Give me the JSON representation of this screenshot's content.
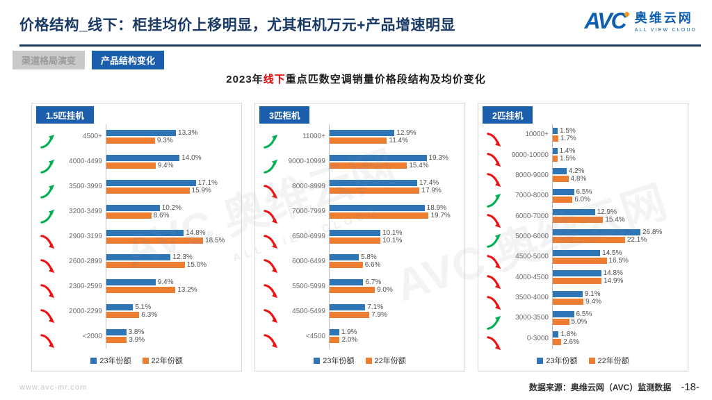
{
  "header": {
    "title": "价格结构_线下：柜挂均价上移明显，尤其柜机万元+产品增速明显",
    "logo": {
      "short": "AVC",
      "cn": "奥维云网",
      "en": "ALL VIEW CLOUD"
    }
  },
  "tabs": [
    {
      "label": "渠道格局演变",
      "active": false
    },
    {
      "label": "产品结构变化",
      "active": true
    }
  ],
  "chart_title": {
    "prefix": "2023年",
    "highlight": "线下",
    "suffix": "重点匹数空调销量价格段结构及均价变化"
  },
  "legend": [
    "23年份额",
    "22年份额"
  ],
  "colors": {
    "blue": "#2E75B6",
    "orange": "#ED7D31",
    "green": "#00B050",
    "red": "#EE1111",
    "panel_header": "#1B5EAC"
  },
  "watermarks": [
    {
      "text": "AVC 奥维云网"
    },
    {
      "text": "AVC 奥维云网"
    },
    {
      "text": "ALL VIEW CLOUD"
    }
  ],
  "footer": {
    "left": "www.avc-mr.com",
    "source": "数据来源：奥维云网（AVC）监测数据",
    "page": "-18-"
  },
  "chart_data": [
    {
      "type": "bar",
      "orientation": "horizontal",
      "title": "1.5匹挂机",
      "series_names": [
        "23年份额",
        "22年份额"
      ],
      "xlim": [
        0,
        25
      ],
      "legend_position": "bottom",
      "rows": [
        {
          "category": "4500+",
          "y23": 13.3,
          "y22": 9.3,
          "trend": "up"
        },
        {
          "category": "4000-4499",
          "y23": 14.0,
          "y22": 9.4,
          "trend": "up"
        },
        {
          "category": "3500-3999",
          "y23": 17.1,
          "y22": 15.9,
          "trend": "up"
        },
        {
          "category": "3200-3499",
          "y23": 10.2,
          "y22": 8.6,
          "trend": "up"
        },
        {
          "category": "2900-3199",
          "y23": 14.8,
          "y22": 18.5,
          "trend": "down"
        },
        {
          "category": "2600-2899",
          "y23": 12.3,
          "y22": 15.0,
          "trend": "down"
        },
        {
          "category": "2300-2599",
          "y23": 9.4,
          "y22": 13.2,
          "trend": "down"
        },
        {
          "category": "2000-2299",
          "y23": 5.1,
          "y22": 6.3,
          "trend": "down"
        },
        {
          "category": "<2000",
          "y23": 3.8,
          "y22": 3.9,
          "trend": "down"
        }
      ]
    },
    {
      "type": "bar",
      "orientation": "horizontal",
      "title": "3匹柜机",
      "series_names": [
        "23年份额",
        "22年份额"
      ],
      "xlim": [
        0,
        26
      ],
      "legend_position": "bottom",
      "rows": [
        {
          "category": "11000+",
          "y23": 12.9,
          "y22": 11.4,
          "trend": "up"
        },
        {
          "category": "9000-10999",
          "y23": 19.3,
          "y22": 15.4,
          "trend": "up"
        },
        {
          "category": "8000-8999",
          "y23": 17.4,
          "y22": 17.9,
          "trend": "down"
        },
        {
          "category": "7000-7999",
          "y23": 18.9,
          "y22": 19.7,
          "trend": "down"
        },
        {
          "category": "6500-6999",
          "y23": 10.1,
          "y22": 10.1,
          "trend": "down"
        },
        {
          "category": "6000-6499",
          "y23": 5.8,
          "y22": 6.6,
          "trend": "down"
        },
        {
          "category": "5500-5999",
          "y23": 6.7,
          "y22": 9.0,
          "trend": "down"
        },
        {
          "category": "4500-5499",
          "y23": 7.1,
          "y22": 7.9,
          "trend": "down"
        },
        {
          "category": "<4500",
          "y23": 1.9,
          "y22": 2.0,
          "trend": "down"
        }
      ]
    },
    {
      "type": "bar",
      "orientation": "horizontal",
      "title": "2匹挂机",
      "series_names": [
        "23年份额",
        "22年份额"
      ],
      "xlim": [
        0,
        40
      ],
      "legend_position": "bottom",
      "rows": [
        {
          "category": "10000+",
          "y23": 1.5,
          "y22": 1.7,
          "trend": "down"
        },
        {
          "category": "9000-10000",
          "y23": 1.4,
          "y22": 1.5,
          "trend": "down"
        },
        {
          "category": "8000-9000",
          "y23": 4.2,
          "y22": 4.8,
          "trend": "down"
        },
        {
          "category": "7000-8000",
          "y23": 6.5,
          "y22": 6.0,
          "trend": "up"
        },
        {
          "category": "6000-7000",
          "y23": 12.9,
          "y22": 15.4,
          "trend": "down"
        },
        {
          "category": "5000-6000",
          "y23": 26.8,
          "y22": 22.1,
          "trend": "up"
        },
        {
          "category": "4500-5000",
          "y23": 14.5,
          "y22": 16.5,
          "trend": "down"
        },
        {
          "category": "4000-4500",
          "y23": 14.8,
          "y22": 14.9,
          "trend": "down"
        },
        {
          "category": "3500-4000",
          "y23": 9.1,
          "y22": 9.4,
          "trend": "down"
        },
        {
          "category": "3000-3500",
          "y23": 6.5,
          "y22": 5.0,
          "trend": "up"
        },
        {
          "category": "0-3000",
          "y23": 1.8,
          "y22": 2.6,
          "trend": "down"
        }
      ]
    }
  ]
}
